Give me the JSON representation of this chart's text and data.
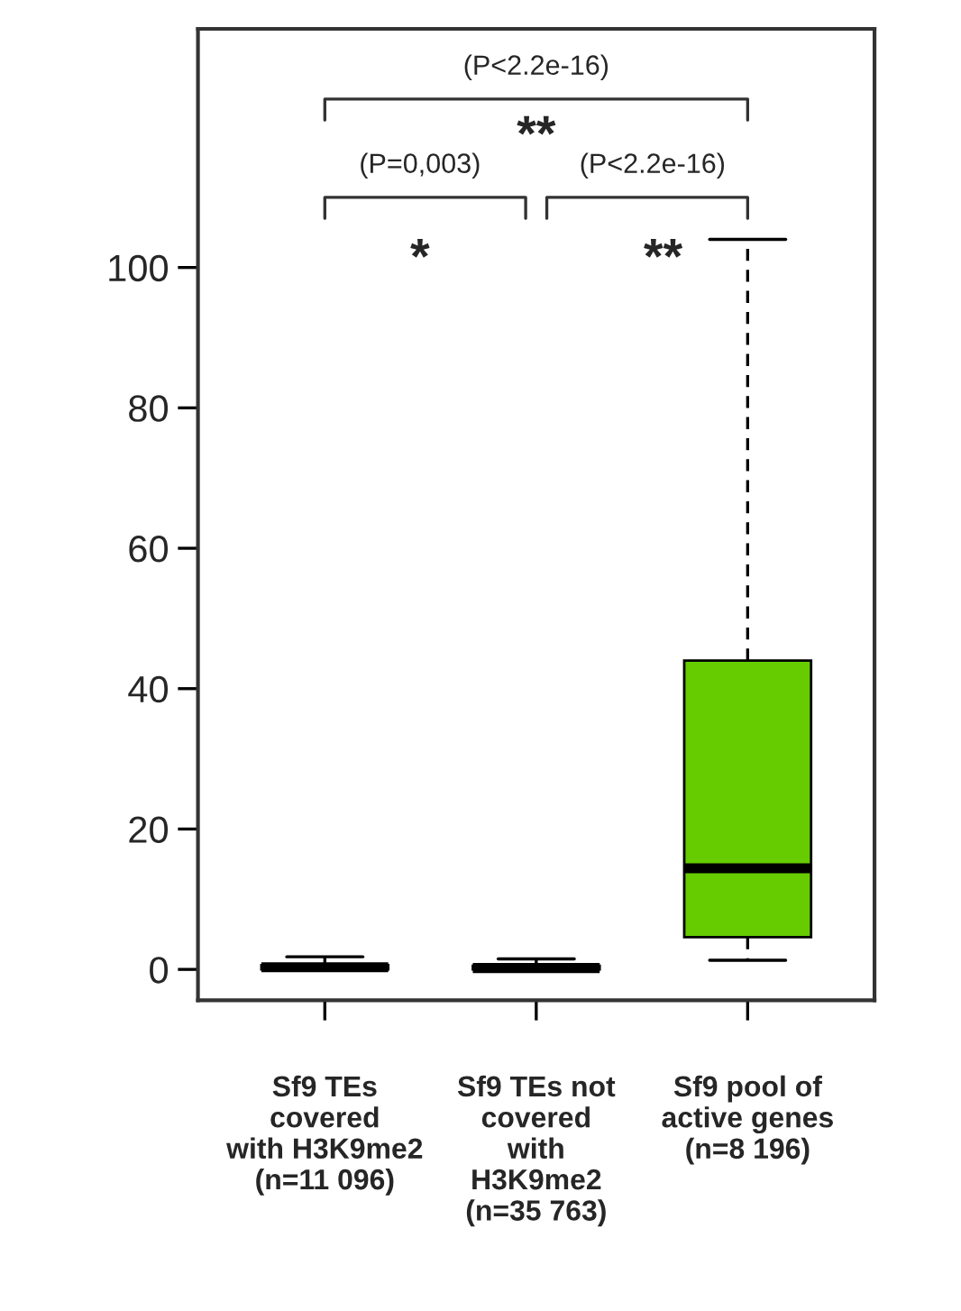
{
  "chart_data": {
    "type": "box",
    "categories": [
      "Sf9 TEs\ncovered\nwith H3K9me2\n(n=11 096)",
      "Sf9 TEs not\ncovered\nwith\nH3K9me2\n(n=35 763)",
      "Sf9 pool of\nactive genes\n(n=8 196)"
    ],
    "boxes": [
      {
        "low": 0,
        "q1": 0,
        "median": 0.3,
        "q3": 0.6,
        "high": 1.8
      },
      {
        "low": 0,
        "q1": 0,
        "median": 0.2,
        "q3": 0.5,
        "high": 1.5
      },
      {
        "low": 1.3,
        "q1": 4.6,
        "median": 14.4,
        "q3": 44,
        "high": 104
      }
    ],
    "colors": [
      "#ffffff",
      "#ffffff",
      "#66cc00"
    ],
    "ylim": [
      -4.4,
      134
    ],
    "yticks": [
      0,
      20,
      40,
      60,
      80,
      100
    ],
    "line_style": "dashed",
    "grid": false,
    "legend": false,
    "annotations": [
      "(P<2.2e-16)",
      "**",
      "(P=0,003)",
      "(P<2.2e-16)",
      "*",
      "**"
    ]
  }
}
